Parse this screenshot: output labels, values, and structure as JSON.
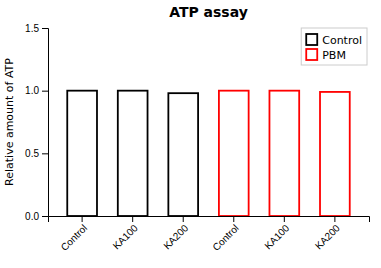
{
  "chart_data": {
    "type": "bar",
    "title": "ATP assay",
    "ylabel": "Relative amount of ATP",
    "categories": [
      "Control",
      "KA100",
      "KA200",
      "Control",
      "KA100",
      "KA200"
    ],
    "series": [
      {
        "name": "Control",
        "color": "#000000",
        "values": [
          1.0,
          1.0,
          0.98,
          null,
          null,
          null
        ]
      },
      {
        "name": "PBM",
        "color": "#ff0000",
        "values": [
          null,
          null,
          null,
          1.0,
          1.0,
          0.99
        ]
      }
    ],
    "ylim": [
      0,
      1.5
    ],
    "yticks": [
      {
        "value": 0.0,
        "label": "0.0"
      },
      0.5,
      {
        "value": 1.0,
        "label": "1.0"
      },
      1.5
    ],
    "grid": false,
    "legend": "upper-right"
  }
}
